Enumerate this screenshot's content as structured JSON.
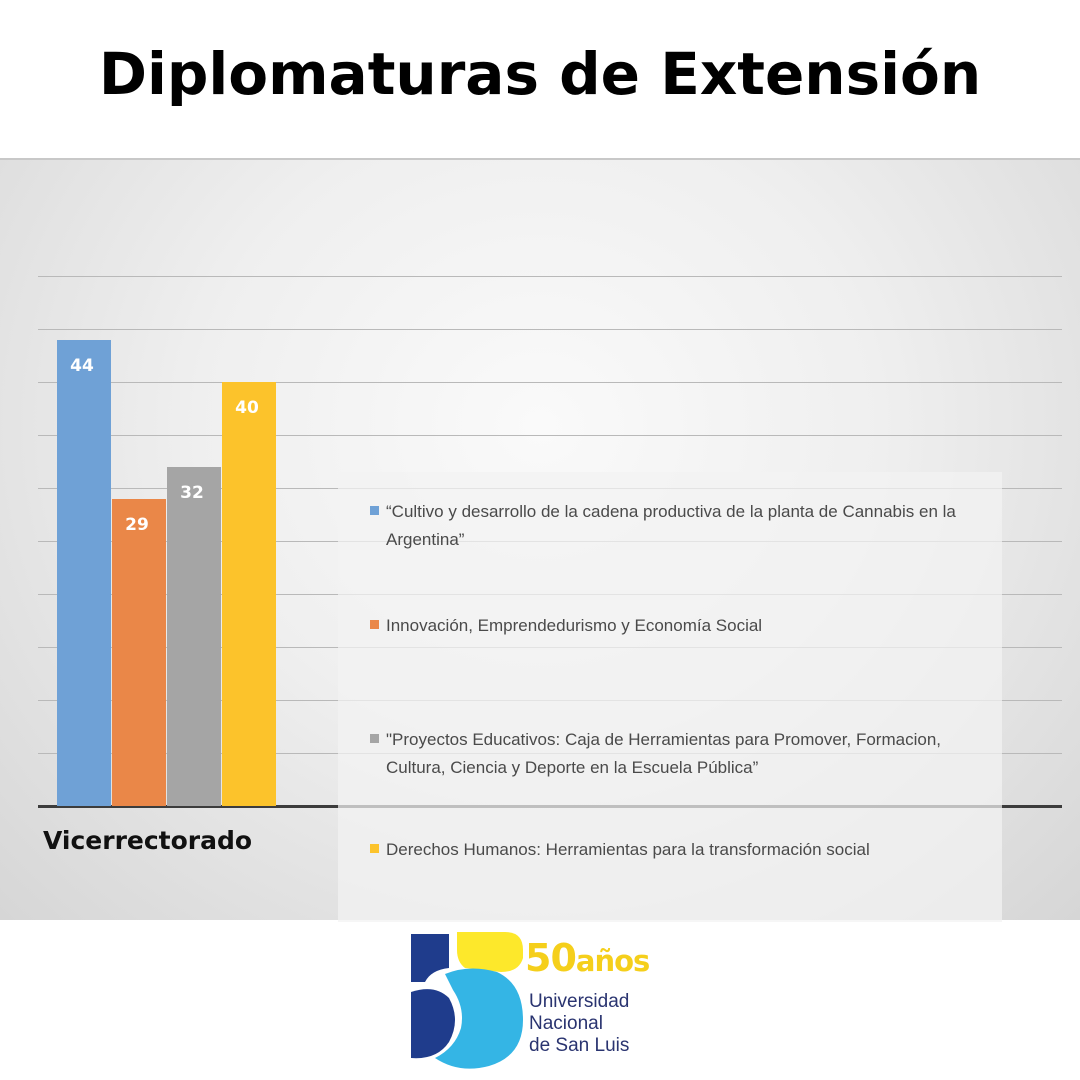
{
  "title": "Diplomaturas de Extensión",
  "chart_data": {
    "type": "bar",
    "categories": [
      "Vicerrectorado"
    ],
    "series": [
      {
        "name": "“Cultivo y desarrollo de la cadena productiva de la planta de Cannabis en la Argentina”",
        "values": [
          44
        ],
        "color": "#6fa1d6"
      },
      {
        "name": "Innovación, Emprendedurismo y Economía Social",
        "values": [
          29
        ],
        "color": "#ea8748"
      },
      {
        "name": "\"Proyectos Educativos: Caja de Herramientas para Promover, Formacion, Cultura, Ciencia y Deporte en la Escuela Pública”",
        "values": [
          32
        ],
        "color": "#a5a5a5"
      },
      {
        "name": "Derechos Humanos: Herramientas para la transformación social",
        "values": [
          40
        ],
        "color": "#fcc32b"
      }
    ],
    "ylim": [
      0,
      50
    ],
    "grid": true,
    "legend_position": "right",
    "data_labels": true
  },
  "logo": {
    "number": "50",
    "suffix": "años",
    "line1": "Universidad",
    "line2": "Nacional",
    "line3": "de San Luis",
    "colors": {
      "yellow": "#fde82b",
      "light_blue": "#34b5e5",
      "dark_blue": "#1f3c8c",
      "text_yellow": "#f5cf1b"
    }
  }
}
